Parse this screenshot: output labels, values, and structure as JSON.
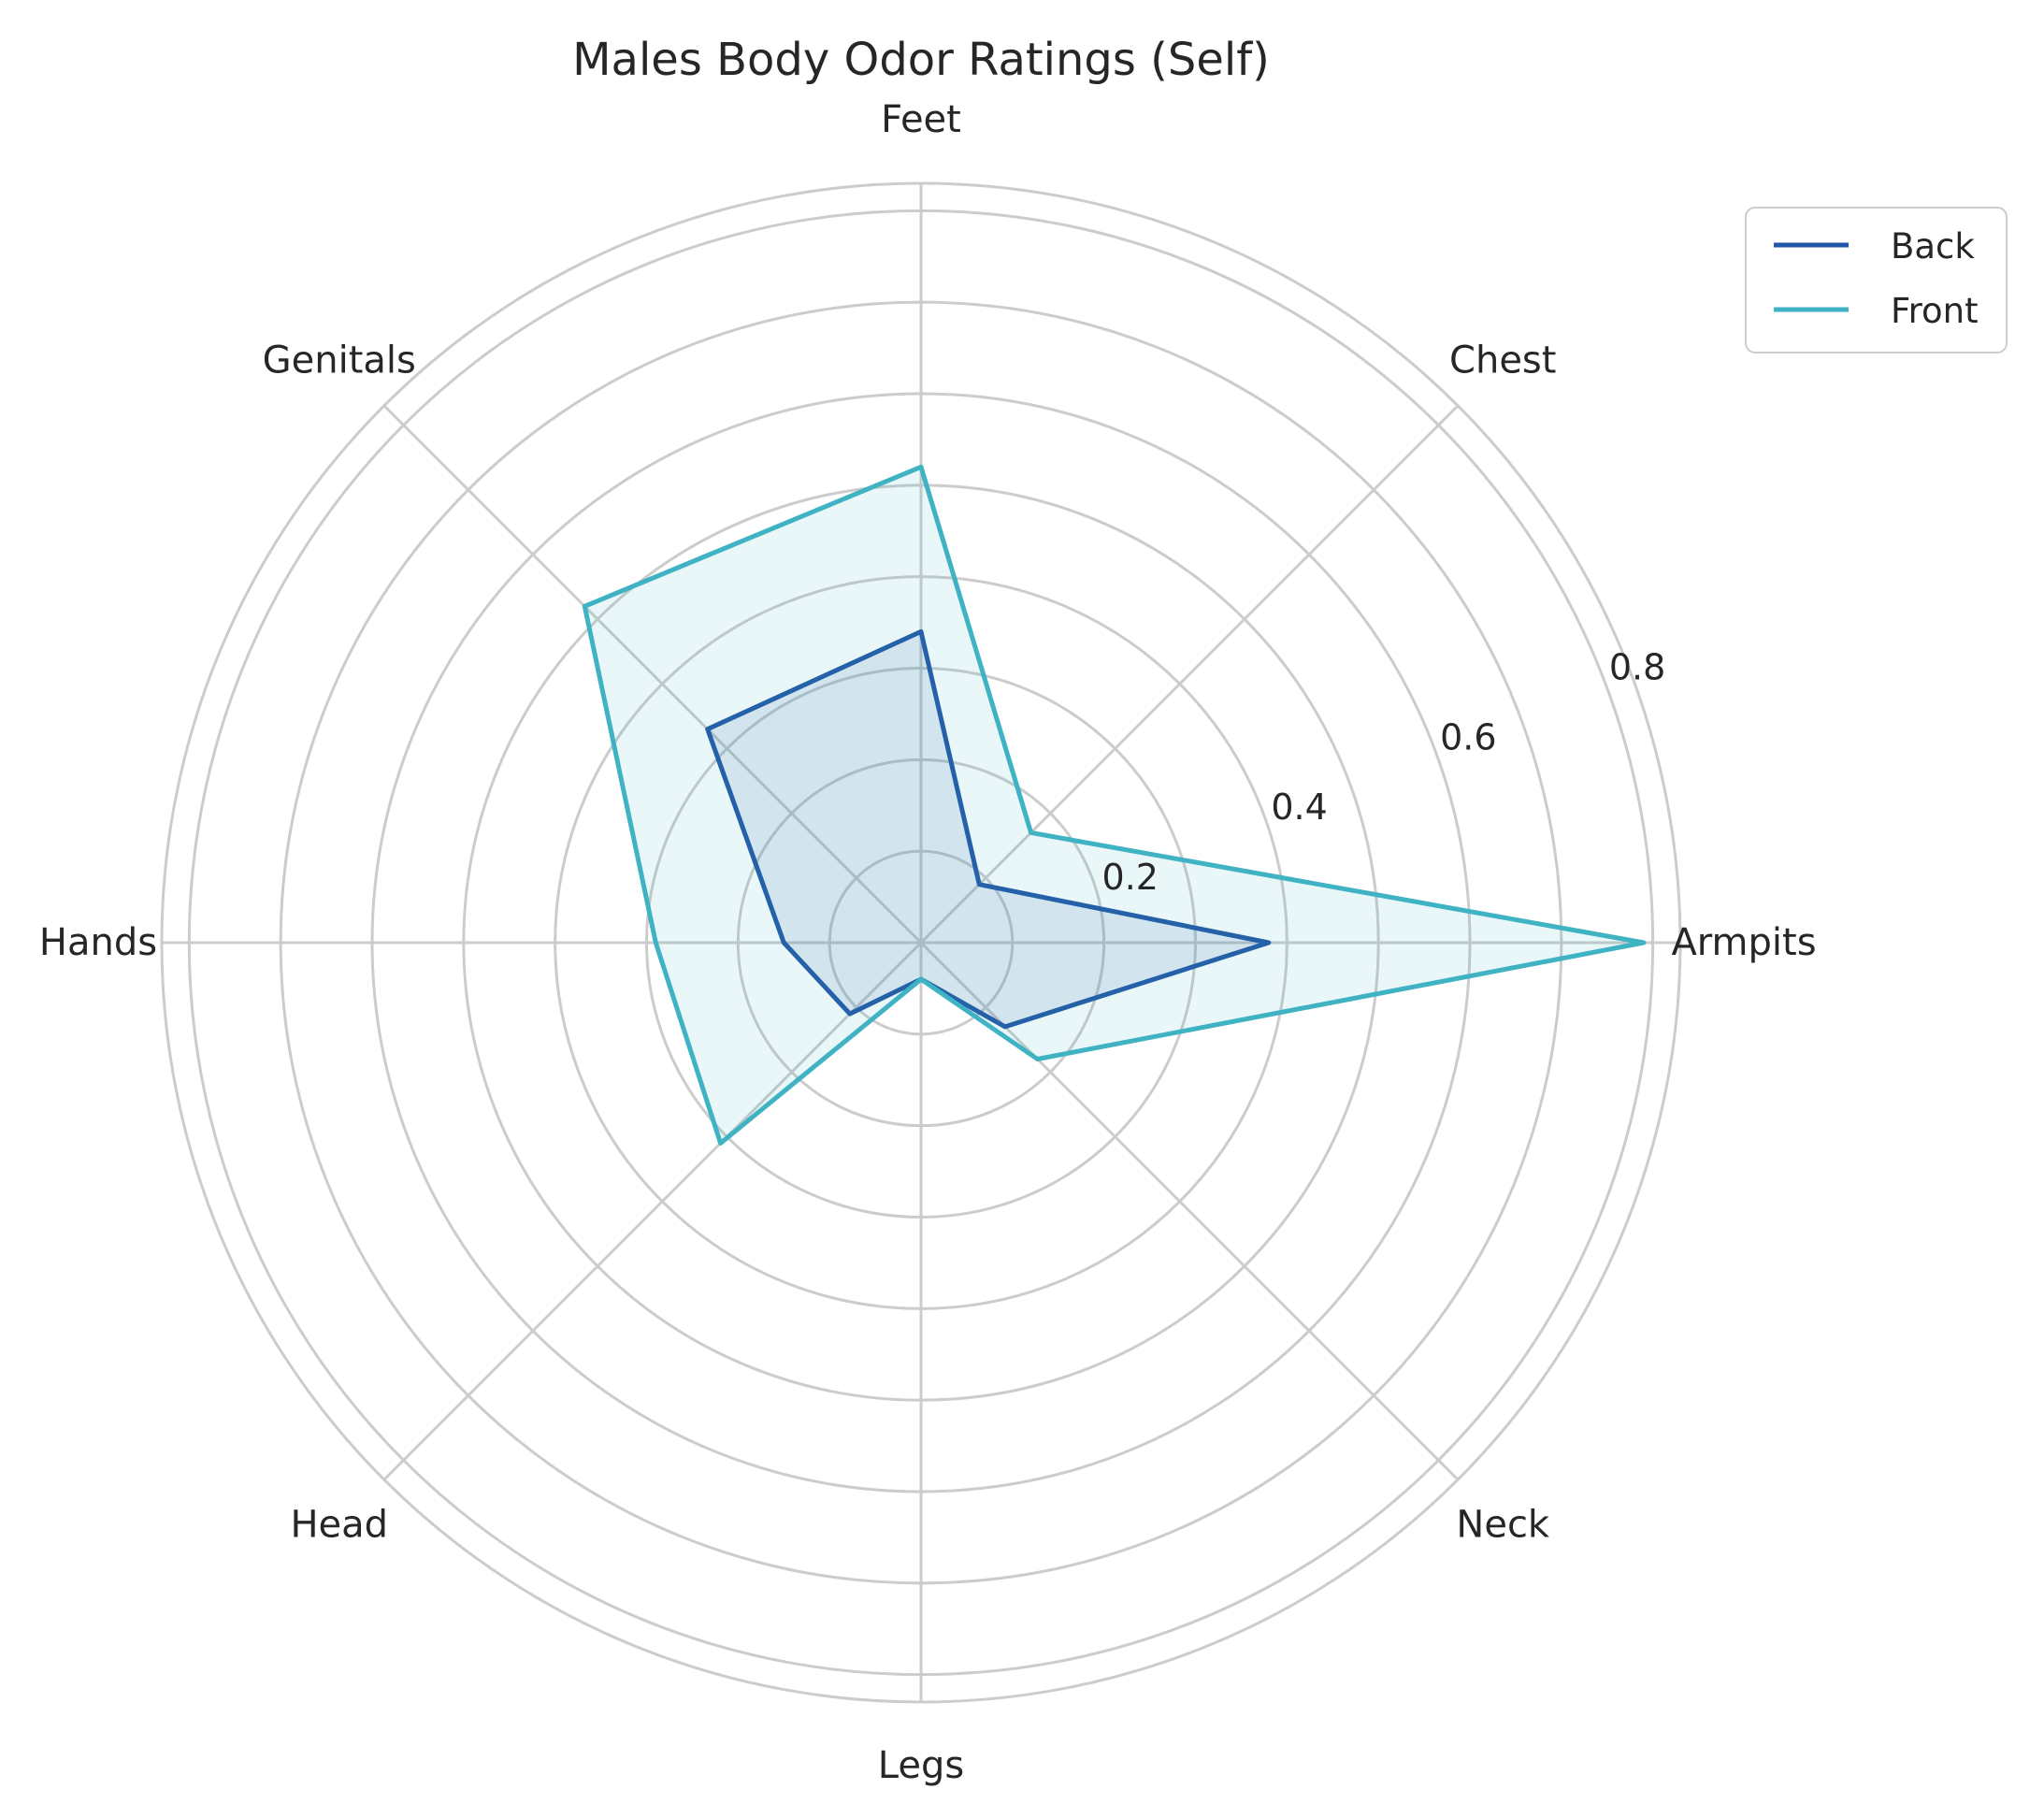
{
  "chart_data": {
    "type": "radar",
    "title": "Males Body Odor Ratings (Self)",
    "categories": [
      "Armpits",
      "Chest",
      "Feet",
      "Genitals",
      "Hands",
      "Head",
      "Legs",
      "Neck"
    ],
    "series": [
      {
        "name": "Back",
        "color": "#2157a4",
        "values": [
          0.38,
          0.09,
          0.34,
          0.33,
          0.15,
          0.11,
          0.04,
          0.13
        ],
        "filled": true
      },
      {
        "name": "Front",
        "color": "#3fb2c4",
        "values": [
          0.79,
          0.17,
          0.52,
          0.52,
          0.29,
          0.31,
          0.04,
          0.18
        ],
        "filled": true
      }
    ],
    "rlim": [
      0,
      0.83
    ],
    "radial_ticks": [
      0.2,
      0.4,
      0.6,
      0.8
    ],
    "radial_tick_labels": [
      "0.2",
      "0.4",
      "0.6",
      "0.8"
    ],
    "grid": true,
    "legend_position": "top-right",
    "colors": {
      "grid": "#cccccc",
      "text": "#262626",
      "legend_border": "#cccccc"
    }
  }
}
